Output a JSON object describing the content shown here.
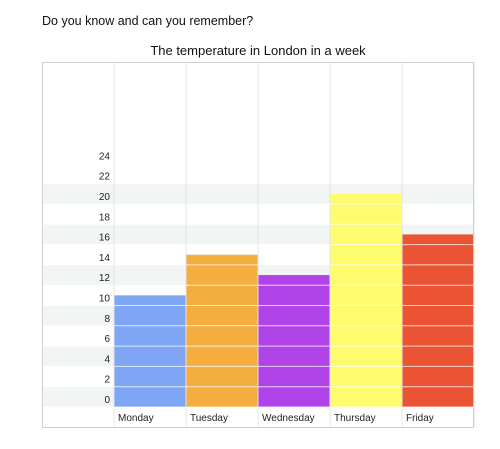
{
  "question": "Do you know and can you remember?",
  "chart_data": {
    "type": "bar",
    "title": "The temperature in London in a week",
    "categories": [
      "Monday",
      "Tuesday",
      "Wednesday",
      "Thursday",
      "Friday"
    ],
    "values": [
      11,
      15,
      13,
      21,
      17
    ],
    "y_tick_labels": [
      "0",
      "2",
      "4",
      "6",
      "8",
      "10",
      "12",
      "14",
      "16",
      "18",
      "20",
      "22",
      "24"
    ],
    "ylim": [
      0,
      24
    ],
    "xlabel": "",
    "ylabel": "",
    "grid": true,
    "colors": [
      "#7fa6f5",
      "#f3ae3f",
      "#b044e9",
      "#fffb6e",
      "#ea5333"
    ]
  }
}
